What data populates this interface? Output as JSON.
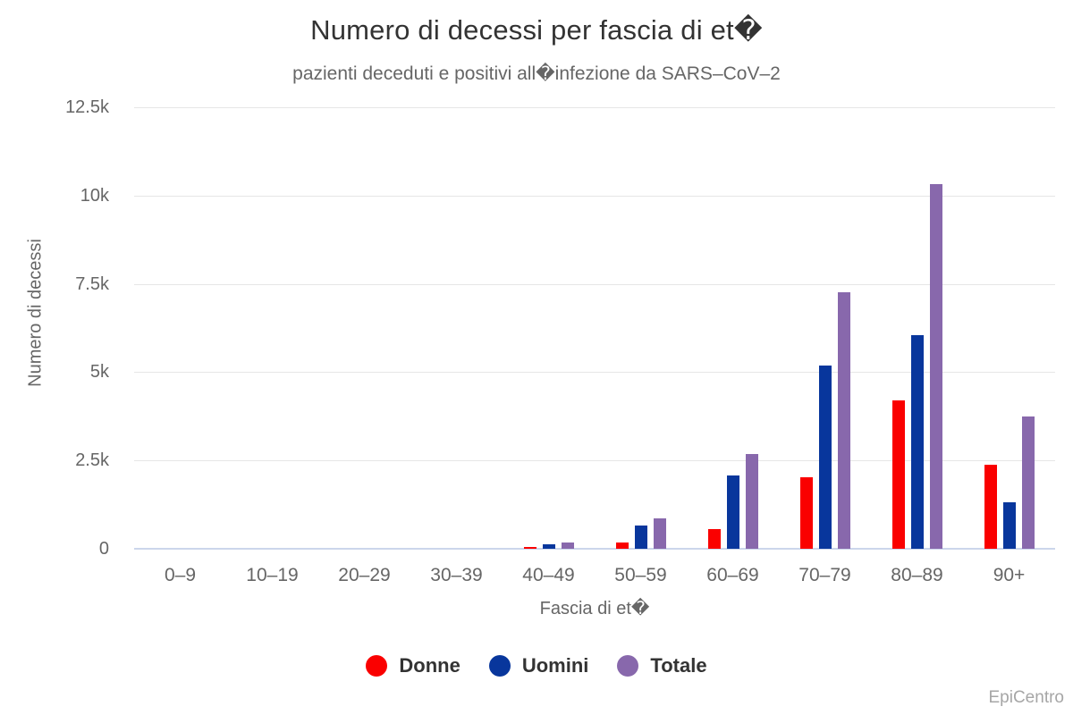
{
  "chart": {
    "title": "Numero di decessi per fascia di et�",
    "subtitle": "pazienti deceduti e positivi all�infezione da SARS–CoV–2",
    "credit": "EpiCentro"
  },
  "colors": {
    "donne": "#fa0000",
    "uomini": "#08369c",
    "totale": "#8868ac",
    "gridline": "#e6e6e6",
    "axis_line": "#ccd6eb",
    "tick_text": "#666666",
    "title_text": "#333333",
    "legend_text": "#333333",
    "credit_text": "#a6a6a6"
  },
  "chart_data": {
    "type": "bar",
    "title": "Numero di decessi per fascia di et�",
    "subtitle": "pazienti deceduti e positivi all�infezione da SARS–CoV–2",
    "xlabel": "Fascia di et�",
    "ylabel": "Numero di decessi",
    "categories": [
      "0–9",
      "10–19",
      "20–29",
      "30–39",
      "40–49",
      "50–59",
      "60–69",
      "70–79",
      "80–89",
      "90+"
    ],
    "series": [
      {
        "name": "Donne",
        "color": "#fa0000",
        "values": [
          0,
          0,
          0,
          0,
          45,
          170,
          560,
          2020,
          4210,
          2380
        ]
      },
      {
        "name": "Uomini",
        "color": "#08369c",
        "values": [
          0,
          0,
          0,
          0,
          115,
          650,
          2080,
          5190,
          6050,
          1325
        ]
      },
      {
        "name": "Totale",
        "color": "#8868ac",
        "values": [
          0,
          0,
          0,
          0,
          165,
          850,
          2690,
          7260,
          10320,
          3750
        ]
      }
    ],
    "ylim": [
      0,
      12500
    ],
    "yticks": [
      {
        "value": 0,
        "label": "0"
      },
      {
        "value": 2500,
        "label": "2.5k"
      },
      {
        "value": 5000,
        "label": "5k"
      },
      {
        "value": 7500,
        "label": "7.5k"
      },
      {
        "value": 10000,
        "label": "10k"
      },
      {
        "value": 12500,
        "label": "12.5k"
      }
    ],
    "grid": true,
    "legend_position": "bottom",
    "credit": "EpiCentro"
  }
}
